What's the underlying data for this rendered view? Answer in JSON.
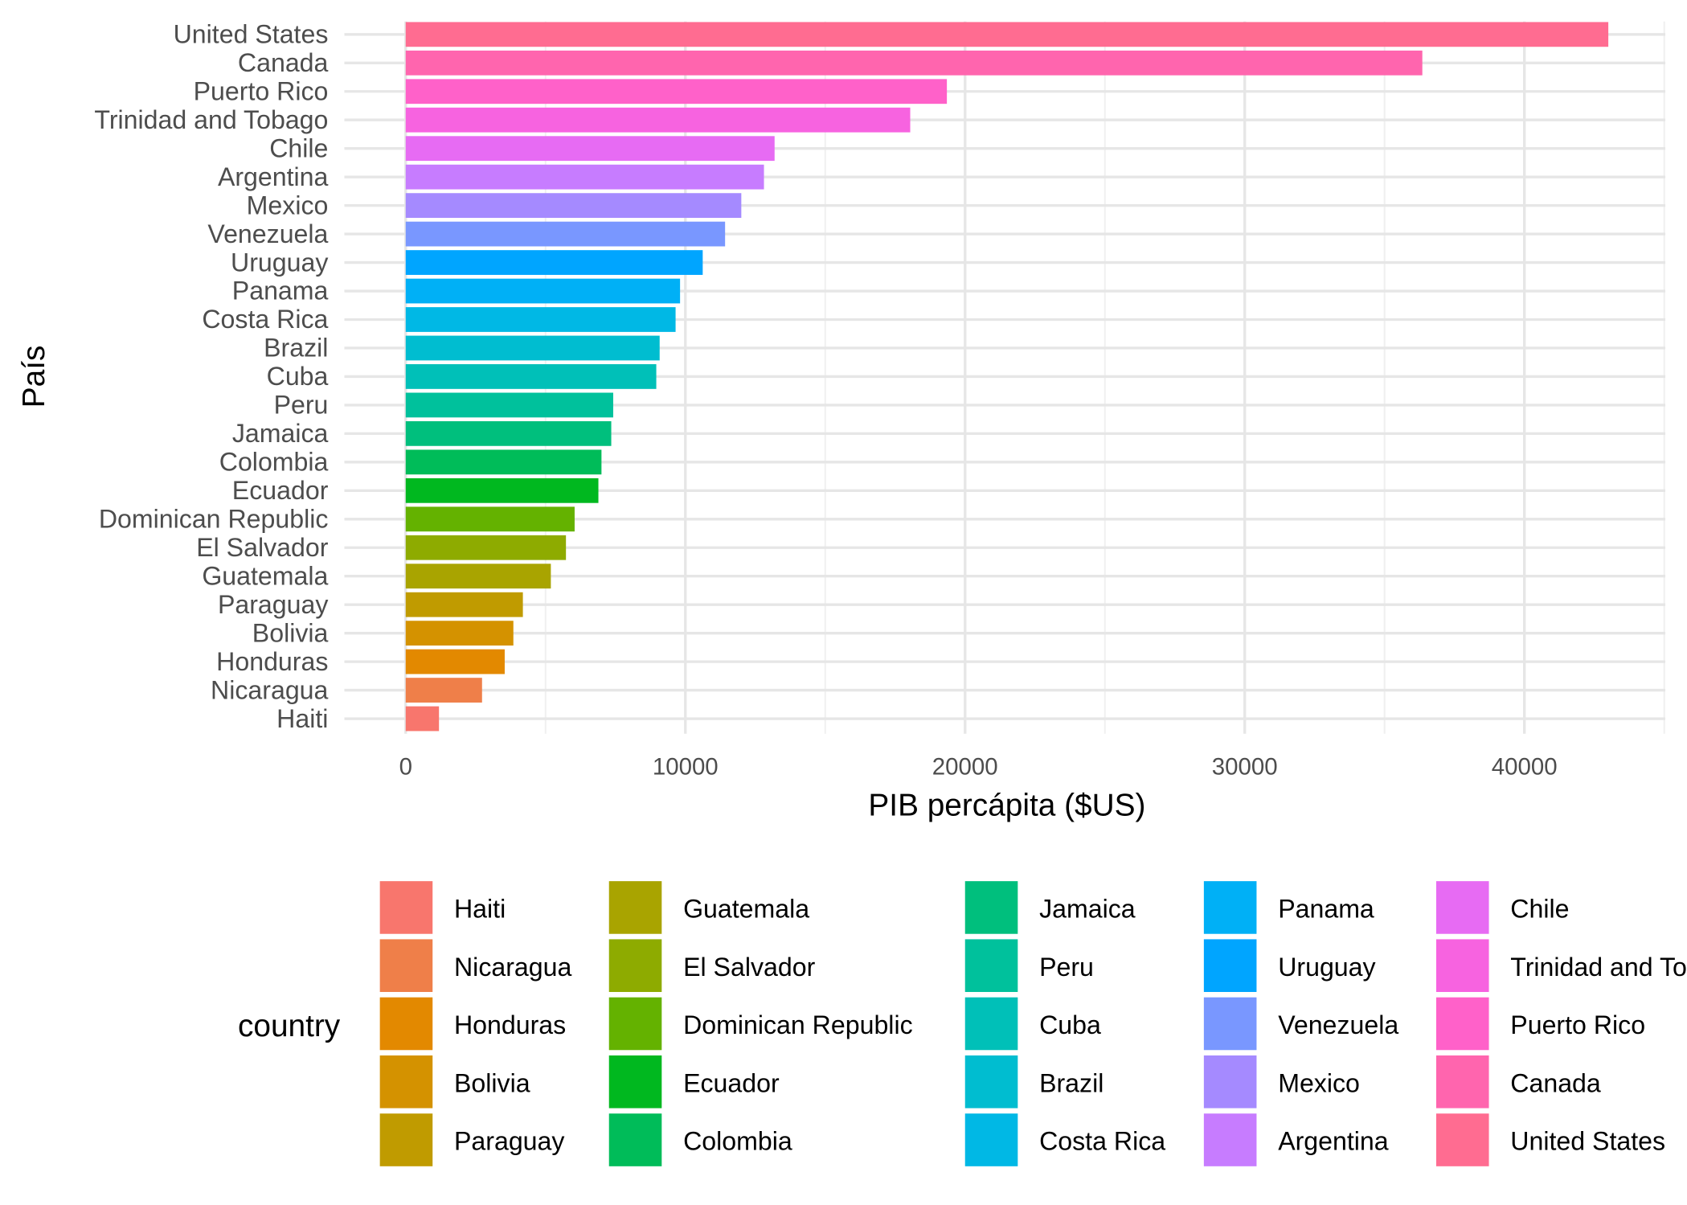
{
  "chart_data": {
    "type": "bar",
    "orientation": "horizontal",
    "xlabel": "PIB percápita ($US)",
    "ylabel": "País",
    "xlim": [
      0,
      45000
    ],
    "xticks": [
      "0",
      "10000",
      "20000",
      "30000",
      "40000"
    ],
    "xtick_values": [
      0,
      10000,
      20000,
      30000,
      40000
    ],
    "grid": true,
    "legend": {
      "title": "country",
      "placement": "bottom"
    },
    "categories": [
      "United States",
      "Canada",
      "Puerto Rico",
      "Trinidad and Tobago",
      "Chile",
      "Argentina",
      "Mexico",
      "Venezuela",
      "Uruguay",
      "Panama",
      "Costa Rica",
      "Brazil",
      "Cuba",
      "Peru",
      "Jamaica",
      "Colombia",
      "Ecuador",
      "Dominican Republic",
      "El Salvador",
      "Guatemala",
      "Paraguay",
      "Bolivia",
      "Honduras",
      "Nicaragua",
      "Haiti"
    ],
    "values": [
      43000,
      36350,
      19350,
      18040,
      13190,
      12810,
      12000,
      11420,
      10620,
      9810,
      9650,
      9080,
      8960,
      7420,
      7350,
      7000,
      6890,
      6040,
      5730,
      5190,
      4190,
      3850,
      3540,
      2730,
      1190
    ],
    "colors": [
      "#FF6C91",
      "#FF65AE",
      "#FF61C9",
      "#F763E0",
      "#E76BF3",
      "#C77CFF",
      "#A58AFF",
      "#7997FF",
      "#00A5FF",
      "#00B0F6",
      "#00B8E5",
      "#00BDD0",
      "#00C0B8",
      "#00C19C",
      "#00BF7D",
      "#00BC59",
      "#00B81F",
      "#64B200",
      "#8EAB00",
      "#A9A400",
      "#C09B00",
      "#D49200",
      "#E38900",
      "#EF7F49",
      "#F8766D"
    ],
    "legend_order": [
      "Haiti",
      "Nicaragua",
      "Honduras",
      "Bolivia",
      "Paraguay",
      "Guatemala",
      "El Salvador",
      "Dominican Republic",
      "Ecuador",
      "Colombia",
      "Jamaica",
      "Peru",
      "Cuba",
      "Brazil",
      "Costa Rica",
      "Panama",
      "Uruguay",
      "Venezuela",
      "Mexico",
      "Argentina",
      "Chile",
      "Trinidad and Tobago",
      "Puerto Rico",
      "Canada",
      "United States"
    ]
  }
}
